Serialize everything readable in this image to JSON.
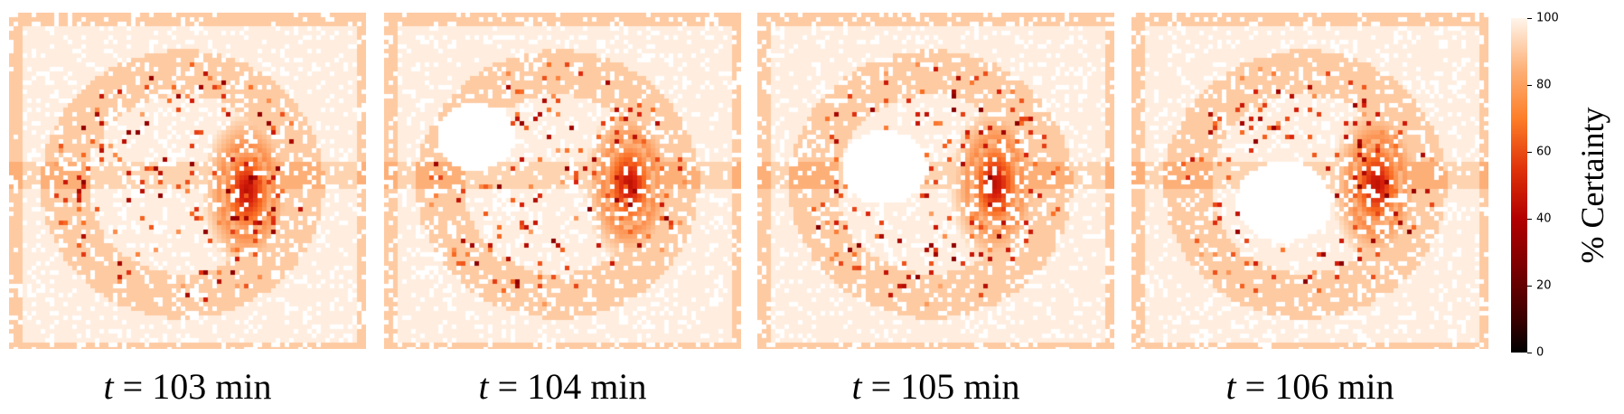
{
  "chart_data": {
    "type": "heatmap",
    "panels": [
      {
        "caption_var": "t",
        "caption_rest": "= 103 min",
        "time_min": 103
      },
      {
        "caption_var": "t",
        "caption_rest": "= 104 min",
        "time_min": 104
      },
      {
        "caption_var": "t",
        "caption_rest": "= 105 min",
        "time_min": 105
      },
      {
        "caption_var": "t",
        "caption_rest": "= 106 min",
        "time_min": 106
      }
    ],
    "colorbar": {
      "label": "% Certainty",
      "range": [
        0,
        100
      ],
      "ticks": [
        "0",
        "20",
        "40",
        "60",
        "80",
        "100"
      ],
      "colormap": "gist_heat_r"
    }
  },
  "colors": {
    "low": "#000000",
    "mid": "#b30000",
    "high": "#fd7e28",
    "max": "#ffffff"
  }
}
